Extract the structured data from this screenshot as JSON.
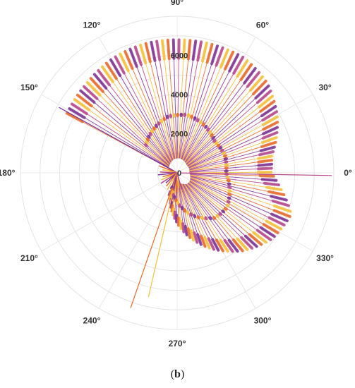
{
  "caption": {
    "open": "(",
    "letter": "b",
    "close": ")"
  },
  "chart_data": {
    "type": "polar",
    "title": "",
    "angular_axis": {
      "unit": "degrees",
      "direction": "counterclockwise",
      "zero_at": "right",
      "tick_values": [
        0,
        30,
        60,
        90,
        120,
        150,
        180,
        210,
        240,
        270,
        300,
        330
      ],
      "tick_labels": [
        "0°",
        "30°",
        "60°",
        "90°",
        "120°",
        "150°",
        "180°",
        "210°",
        "240°",
        "270°",
        "300°",
        "330°"
      ]
    },
    "radial_axis": {
      "range": [
        0,
        8000
      ],
      "tick_values": [
        0,
        2000,
        4000,
        6000
      ],
      "tick_labels": [
        "0",
        "2000",
        "4000",
        "6000"
      ],
      "label_angle_deg": 90
    },
    "grid": true,
    "colors": [
      "#7b3294",
      "#e8692a",
      "#f2bf3a",
      "#b5478c"
    ],
    "inner_loop": {
      "angles_deg": [
        -110,
        -95,
        -80,
        -65,
        -50,
        -35,
        -20,
        0,
        20,
        40,
        60,
        80,
        100,
        120,
        140
      ],
      "radii": [
        800,
        1300,
        1900,
        2500,
        3000,
        3100,
        2850,
        2500,
        2600,
        2500,
        2800,
        3000,
        2900,
        2500,
        2100
      ]
    },
    "outer_loop": {
      "angles_deg": [
        -108,
        -95,
        -80,
        -65,
        -50,
        -35,
        -20,
        -8,
        0,
        10,
        20,
        30,
        45,
        60,
        75,
        90,
        105,
        120,
        135,
        150
      ],
      "radii": [
        1200,
        2200,
        3300,
        4300,
        5200,
        5900,
        6200,
        5300,
        4800,
        4900,
        5400,
        5900,
        6500,
        6800,
        6800,
        6800,
        6800,
        6700,
        6500,
        6400
      ]
    },
    "notes": "Dense envelope of polar spikes; values estimated from gridlines."
  }
}
